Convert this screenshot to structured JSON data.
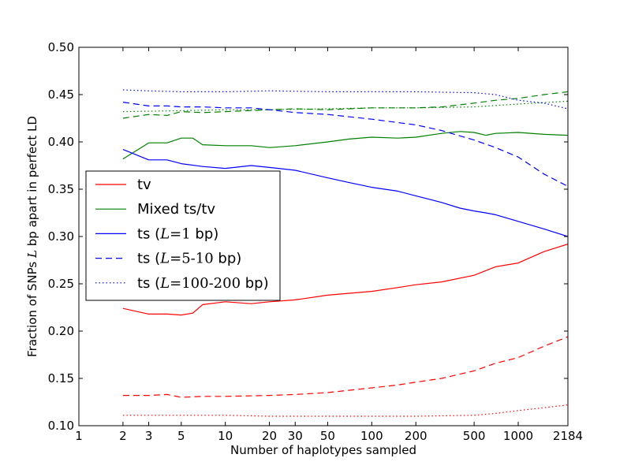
{
  "chart_data": {
    "type": "line",
    "title": "",
    "xlabel": "Number of haplotypes sampled",
    "ylabel": "Fraction of SNPs L bp apart in perfect LD",
    "xscale": "log",
    "xlim": [
      1,
      2184
    ],
    "ylim": [
      0.1,
      0.5
    ],
    "grid": false,
    "legend_position": "center-left",
    "x_ticks": [
      {
        "value": 1,
        "label": "1"
      },
      {
        "value": 2,
        "label": "2"
      },
      {
        "value": 3,
        "label": "3"
      },
      {
        "value": 5,
        "label": "5"
      },
      {
        "value": 10,
        "label": "10"
      },
      {
        "value": 20,
        "label": "20"
      },
      {
        "value": 30,
        "label": "30"
      },
      {
        "value": 50,
        "label": "50"
      },
      {
        "value": 100,
        "label": "100"
      },
      {
        "value": 200,
        "label": "200"
      },
      {
        "value": 500,
        "label": "500"
      },
      {
        "value": 1000,
        "label": "1000"
      },
      {
        "value": 2184,
        "label": "2184"
      }
    ],
    "y_ticks": [
      {
        "value": 0.1,
        "label": "0.10"
      },
      {
        "value": 0.15,
        "label": "0.15"
      },
      {
        "value": 0.2,
        "label": "0.20"
      },
      {
        "value": 0.25,
        "label": "0.25"
      },
      {
        "value": 0.3,
        "label": "0.30"
      },
      {
        "value": 0.35,
        "label": "0.35"
      },
      {
        "value": 0.4,
        "label": "0.40"
      },
      {
        "value": 0.45,
        "label": "0.45"
      },
      {
        "value": 0.5,
        "label": "0.50"
      }
    ],
    "legend": [
      {
        "label": "tv",
        "color": "#ff0000",
        "style": "solid"
      },
      {
        "label": "Mixed ts/tv",
        "color": "#008000",
        "style": "solid"
      },
      {
        "label": "ts (L=1 bp)",
        "prefix": "ts (",
        "math": "L",
        "mid": "=1",
        "suffix": " bp)",
        "color": "#0000ff",
        "style": "solid"
      },
      {
        "label": "ts (L=5-10 bp)",
        "prefix": "ts (",
        "math": "L",
        "mid": "=5-10",
        "suffix": " bp)",
        "color": "#0000ff",
        "style": "dashed"
      },
      {
        "label": "ts (L=100-200 bp)",
        "prefix": "ts (",
        "math": "L",
        "mid": "=100-200",
        "suffix": " bp)",
        "color": "#0000ff",
        "style": "dotted"
      }
    ],
    "series": [
      {
        "name": "tv, L=1 bp",
        "color": "#ff0000",
        "style": "solid",
        "x": [
          2,
          3,
          4,
          5,
          6,
          7,
          10,
          15,
          20,
          30,
          50,
          100,
          150,
          200,
          300,
          500,
          700,
          1000,
          1500,
          2184
        ],
        "y": [
          0.224,
          0.218,
          0.218,
          0.217,
          0.219,
          0.228,
          0.231,
          0.229,
          0.231,
          0.233,
          0.238,
          0.242,
          0.246,
          0.249,
          0.252,
          0.259,
          0.268,
          0.272,
          0.284,
          0.292
        ]
      },
      {
        "name": "tv, L=5-10 bp",
        "color": "#ff0000",
        "style": "dashed",
        "x": [
          2,
          3,
          4,
          5,
          7,
          10,
          20,
          30,
          50,
          100,
          150,
          200,
          300,
          500,
          700,
          1000,
          1500,
          2184
        ],
        "y": [
          0.132,
          0.132,
          0.133,
          0.13,
          0.131,
          0.131,
          0.132,
          0.133,
          0.135,
          0.14,
          0.143,
          0.146,
          0.15,
          0.158,
          0.166,
          0.172,
          0.184,
          0.194
        ]
      },
      {
        "name": "tv, L=100-200 bp",
        "color": "#ff0000",
        "style": "dotted",
        "x": [
          2,
          5,
          10,
          20,
          50,
          100,
          200,
          500,
          700,
          1000,
          1500,
          2184
        ],
        "y": [
          0.111,
          0.111,
          0.111,
          0.11,
          0.11,
          0.11,
          0.11,
          0.111,
          0.113,
          0.116,
          0.119,
          0.122
        ]
      },
      {
        "name": "Mixed ts/tv, L=1 bp",
        "color": "#008000",
        "style": "solid",
        "x": [
          2,
          3,
          4,
          5,
          6,
          7,
          10,
          15,
          20,
          30,
          50,
          70,
          100,
          150,
          200,
          300,
          400,
          500,
          600,
          700,
          1000,
          1500,
          2184
        ],
        "y": [
          0.382,
          0.399,
          0.399,
          0.404,
          0.404,
          0.397,
          0.396,
          0.396,
          0.394,
          0.396,
          0.4,
          0.403,
          0.405,
          0.404,
          0.405,
          0.409,
          0.411,
          0.41,
          0.407,
          0.409,
          0.41,
          0.408,
          0.407
        ]
      },
      {
        "name": "Mixed ts/tv, L=5-10 bp",
        "color": "#008000",
        "style": "dashed",
        "x": [
          2,
          3,
          4,
          5,
          7,
          10,
          20,
          30,
          50,
          100,
          200,
          300,
          500,
          700,
          1000,
          1500,
          2184
        ],
        "y": [
          0.425,
          0.429,
          0.428,
          0.432,
          0.431,
          0.432,
          0.434,
          0.435,
          0.434,
          0.436,
          0.436,
          0.437,
          0.441,
          0.444,
          0.446,
          0.45,
          0.453
        ]
      },
      {
        "name": "Mixed ts/tv, L=100-200 bp",
        "color": "#008000",
        "style": "dotted",
        "x": [
          2,
          5,
          10,
          20,
          50,
          100,
          200,
          500,
          1000,
          2184
        ],
        "y": [
          0.432,
          0.433,
          0.434,
          0.434,
          0.435,
          0.436,
          0.436,
          0.437,
          0.44,
          0.443
        ]
      },
      {
        "name": "ts (L=1 bp)",
        "color": "#0000ff",
        "style": "solid",
        "x": [
          2,
          3,
          4,
          5,
          7,
          10,
          15,
          20,
          30,
          50,
          70,
          100,
          150,
          200,
          300,
          400,
          500,
          600,
          700,
          1000,
          1500,
          2184
        ],
        "y": [
          0.392,
          0.381,
          0.381,
          0.377,
          0.374,
          0.372,
          0.375,
          0.373,
          0.37,
          0.362,
          0.357,
          0.352,
          0.348,
          0.343,
          0.336,
          0.33,
          0.327,
          0.325,
          0.323,
          0.316,
          0.308,
          0.3
        ]
      },
      {
        "name": "ts (L=5-10 bp)",
        "color": "#0000ff",
        "style": "dashed",
        "x": [
          2,
          3,
          4,
          5,
          7,
          10,
          15,
          20,
          30,
          50,
          100,
          200,
          300,
          500,
          700,
          1000,
          1500,
          2184
        ],
        "y": [
          0.442,
          0.438,
          0.438,
          0.437,
          0.437,
          0.436,
          0.436,
          0.434,
          0.431,
          0.429,
          0.424,
          0.418,
          0.412,
          0.402,
          0.394,
          0.384,
          0.366,
          0.353
        ]
      },
      {
        "name": "ts (L=100-200 bp)",
        "color": "#0000ff",
        "style": "dotted",
        "x": [
          2,
          3,
          5,
          10,
          20,
          50,
          100,
          200,
          500,
          700,
          1000,
          1500,
          2184
        ],
        "y": [
          0.455,
          0.454,
          0.453,
          0.453,
          0.454,
          0.453,
          0.453,
          0.453,
          0.452,
          0.45,
          0.444,
          0.441,
          0.435
        ]
      }
    ]
  }
}
